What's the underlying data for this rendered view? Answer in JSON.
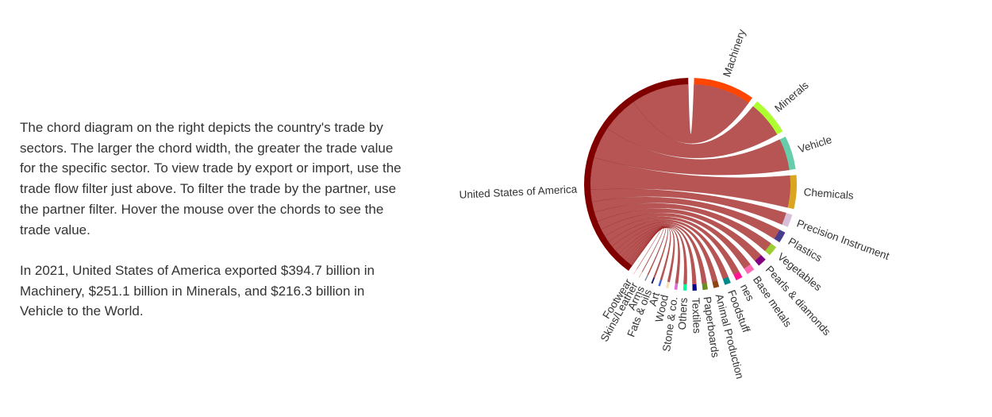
{
  "description": {
    "paragraph1": "The chord diagram on the right depicts the country's trade by sectors. The larger the chord width, the greater the trade value for the specific sector. To view trade by export or import, use the trade flow filter just above. To filter the trade by the partner, use the partner filter. Hover the mouse over the chords to see the trade value.",
    "paragraph2": "In 2021, United States of America exported $394.7 billion in Machinery, $251.1 billion in Minerals, and $216.3 billion in Vehicle to the World."
  },
  "chart_data": {
    "type": "chord",
    "source": {
      "name": "United States of America",
      "color": "#800000"
    },
    "chord_color": "#a52a2a",
    "sectors": [
      {
        "name": "Machinery",
        "color": "#ff4500"
      },
      {
        "name": "Minerals",
        "color": "#adff2f"
      },
      {
        "name": "Vehicle",
        "color": "#66cdaa"
      },
      {
        "name": "Chemicals",
        "color": "#daa520"
      },
      {
        "name": "Precision Instrument",
        "color": "#d8bfd8"
      },
      {
        "name": "Plastics",
        "color": "#483d8b"
      },
      {
        "name": "Vegetables",
        "color": "#9acd32"
      },
      {
        "name": "Pearls & diamonds",
        "color": "#800080"
      },
      {
        "name": "Base metals",
        "color": "#ff69b4"
      },
      {
        "name": "nes",
        "color": "#ff1493"
      },
      {
        "name": "Foodstuff",
        "color": "#008b8b"
      },
      {
        "name": "Animal Production",
        "color": "#8b4513"
      },
      {
        "name": "Paperboards",
        "color": "#6b8e23"
      },
      {
        "name": "Textiles",
        "color": "#00008b"
      },
      {
        "name": "Others",
        "color": "#00fa9a"
      },
      {
        "name": "Stone & co.",
        "color": "#da70d6"
      },
      {
        "name": "Wood",
        "color": "#f5deb3"
      },
      {
        "name": "Art",
        "color": "#4169e1"
      },
      {
        "name": "Fats & oils",
        "color": "#191970"
      },
      {
        "name": "Arms",
        "color": "#708090"
      },
      {
        "name": "Skins/Leather",
        "color": "#d2b48c"
      },
      {
        "name": "Footwear",
        "color": "#ff7f7f"
      }
    ],
    "values": {
      "Machinery": 394.7,
      "Minerals": 251.1,
      "Vehicle": 216.3,
      "Chemicals": 217,
      "Precision Instrument": 83,
      "Plastics": 72,
      "Vegetables": 65,
      "Pearls & diamonds": 58,
      "Base metals": 52,
      "nes": 44,
      "Foodstuff": 40,
      "Animal Production": 36,
      "Paperboards": 33,
      "Textiles": 27,
      "Others": 22,
      "Stone & co.": 19,
      "Wood": 16,
      "Art": 13,
      "Fats & oils": 10,
      "Arms": 7,
      "Skins/Leather": 4,
      "Footwear": 2
    }
  }
}
